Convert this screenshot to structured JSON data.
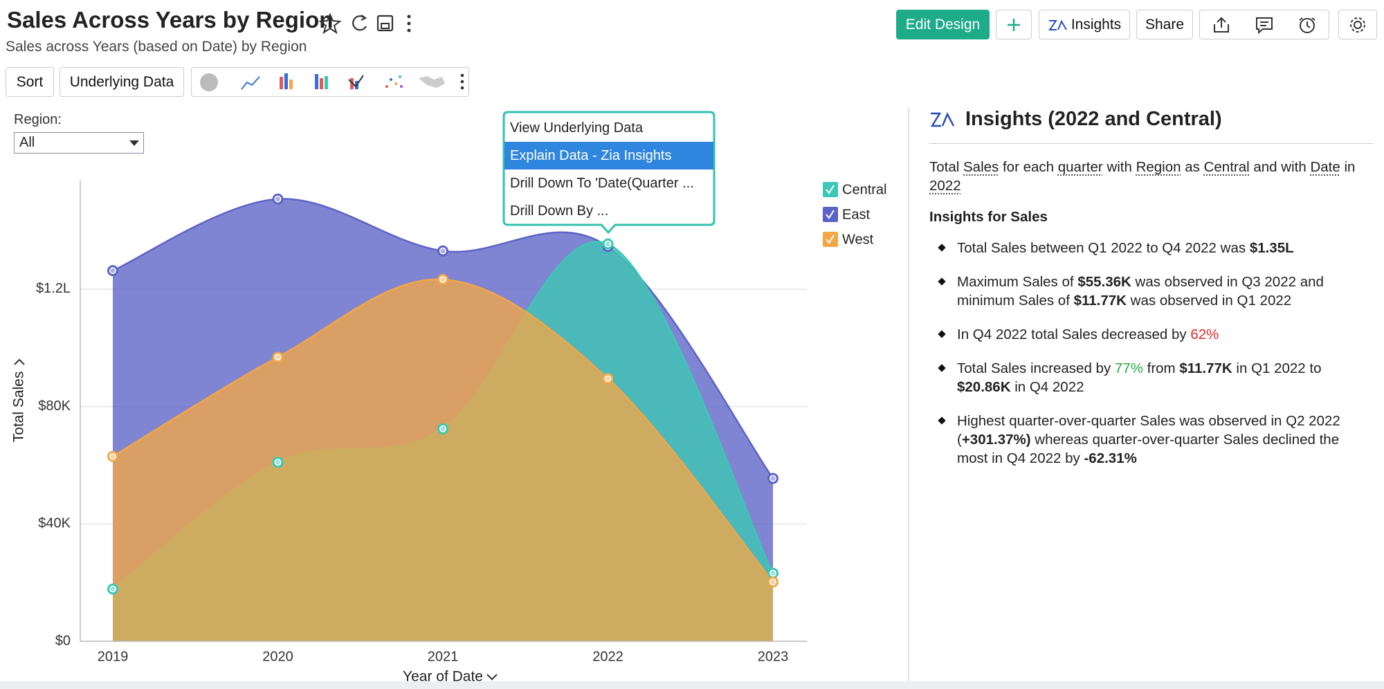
{
  "header": {
    "title": "Sales Across Years by Region",
    "subtitle": "Sales across Years (based on Date) by Region",
    "edit_button": "Edit Design",
    "insights_button": "Insights",
    "share_button": "Share"
  },
  "toolbar": {
    "buttons": [
      "Sort",
      "Underlying Data"
    ]
  },
  "filter": {
    "label": "Region:",
    "value": "All"
  },
  "context_menu": {
    "items": [
      "View Underlying Data",
      "Explain Data - Zia Insights",
      "Drill Down To 'Date(Quarter ...",
      "Drill Down By ..."
    ],
    "selected": 1
  },
  "chart_data": {
    "type": "area",
    "categories": [
      "2019",
      "2020",
      "2021",
      "2022",
      "2023"
    ],
    "series": [
      {
        "name": "East",
        "color": "#5c63c6",
        "values": [
          126300,
          150700,
          133000,
          134500,
          55500
        ]
      },
      {
        "name": "Central",
        "color": "#3cc8b4",
        "values": [
          17800,
          61000,
          72400,
          135400,
          23200
        ]
      },
      {
        "name": "West",
        "color": "#f2a646",
        "values": [
          63000,
          96800,
          123300,
          89500,
          20200
        ]
      }
    ],
    "legend_order": [
      1,
      0,
      2
    ],
    "ylim": [
      0,
      157000
    ],
    "yticks": [
      {
        "value": 0,
        "label": "$0"
      },
      {
        "value": 40000,
        "label": "$40K"
      },
      {
        "value": 80000,
        "label": "$80K"
      },
      {
        "value": 120000,
        "label": "$1.2L"
      }
    ],
    "xlabel": "Year of Date",
    "ylabel": "Total Sales",
    "grid": true,
    "legend": "right"
  },
  "insights": {
    "title": "Insights (2022 and Central)",
    "summary": [
      {
        "text": "Total "
      },
      {
        "text": "Sales",
        "style": "link"
      },
      {
        "text": " for each "
      },
      {
        "text": "quarter",
        "style": "link"
      },
      {
        "text": " with "
      },
      {
        "text": "Region",
        "style": "link"
      },
      {
        "text": " as "
      },
      {
        "text": "Central",
        "style": "link"
      },
      {
        "text": " and with "
      },
      {
        "text": "Date",
        "style": "link"
      },
      {
        "text": " in "
      },
      {
        "text": "2022",
        "style": "link"
      }
    ],
    "subheading": "Insights for Sales",
    "bullets": [
      [
        {
          "text": "Total Sales between Q1 2022 to Q4 2022 was "
        },
        {
          "text": "$1.35L",
          "style": "bold"
        }
      ],
      [
        {
          "text": "Maximum Sales of "
        },
        {
          "text": "$55.36K",
          "style": "bold"
        },
        {
          "text": " was observed in Q3 2022 and minimum Sales of "
        },
        {
          "text": "$11.77K",
          "style": "bold"
        },
        {
          "text": " was observed in Q1 2022"
        }
      ],
      [
        {
          "text": "In Q4 2022 total Sales decreased by "
        },
        {
          "text": "62%",
          "style": "red"
        }
      ],
      [
        {
          "text": "Total Sales increased by "
        },
        {
          "text": "77%",
          "style": "green"
        },
        {
          "text": " from "
        },
        {
          "text": "$11.77K",
          "style": "bold"
        },
        {
          "text": " in Q1 2022 to "
        },
        {
          "text": "$20.86K",
          "style": "bold"
        },
        {
          "text": " in Q4 2022"
        }
      ],
      [
        {
          "text": "Highest quarter-over-quarter Sales was observed in Q2 2022 ("
        },
        {
          "text": "+301.37%)",
          "style": "bold"
        },
        {
          "text": " whereas quarter-over-quarter Sales declined the most in Q4 2022 by "
        },
        {
          "text": "-62.31%",
          "style": "bold"
        }
      ]
    ]
  }
}
